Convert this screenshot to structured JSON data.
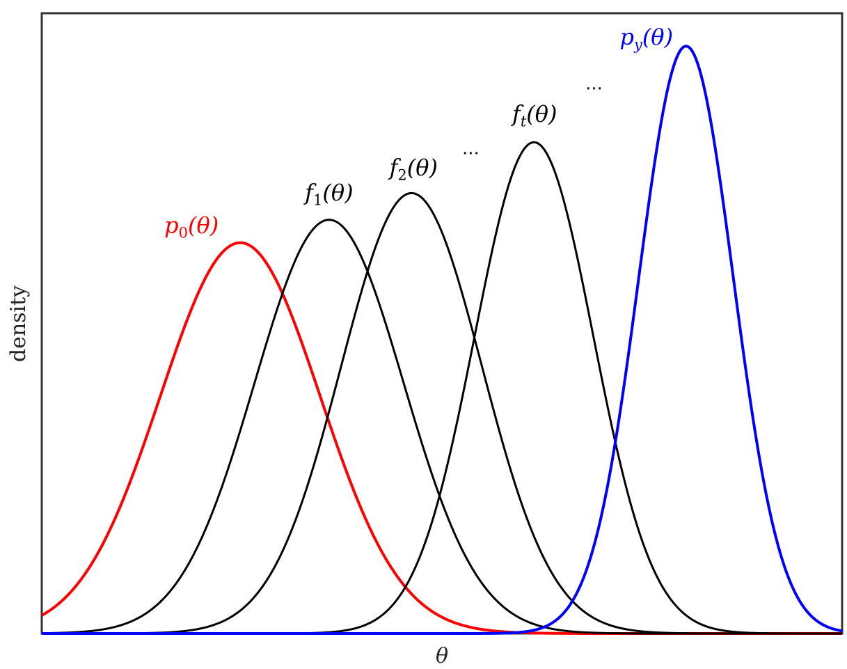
{
  "chart_data": {
    "type": "line",
    "title": "",
    "xlabel": "θ",
    "ylabel": "density",
    "xlim": [
      0,
      1
    ],
    "ylim": [
      0,
      1
    ],
    "grid": false,
    "series": [
      {
        "name": "p0(θ)",
        "label_main": "p",
        "label_sub": "0",
        "label_tail": "(θ)",
        "color": "#ff0000",
        "mu": 0.248,
        "sigma": 0.1,
        "peak": 0.63
      },
      {
        "name": "f1(θ)",
        "label_main": "f",
        "label_sub": "1",
        "label_tail": "(θ)",
        "color": "#000000",
        "mu": 0.359,
        "sigma": 0.093,
        "peak": 0.667
      },
      {
        "name": "f2(θ)",
        "label_main": "f",
        "label_sub": "2",
        "label_tail": "(θ)",
        "color": "#000000",
        "mu": 0.462,
        "sigma": 0.088,
        "peak": 0.71
      },
      {
        "name": "ft(θ)",
        "label_main": "f",
        "label_sub": "t",
        "label_tail": "(θ)",
        "color": "#000000",
        "mu": 0.615,
        "sigma": 0.074,
        "peak": 0.792
      },
      {
        "name": "py(θ)",
        "label_main": "p",
        "label_sub": "y",
        "label_tail": "(θ)",
        "color": "#0000ff",
        "mu": 0.805,
        "sigma": 0.059,
        "peak": 0.947
      }
    ],
    "annotations": [
      {
        "text": "...",
        "x": 0.536,
        "y": 0.773
      },
      {
        "text": "...",
        "x": 0.69,
        "y": 0.877
      }
    ]
  }
}
